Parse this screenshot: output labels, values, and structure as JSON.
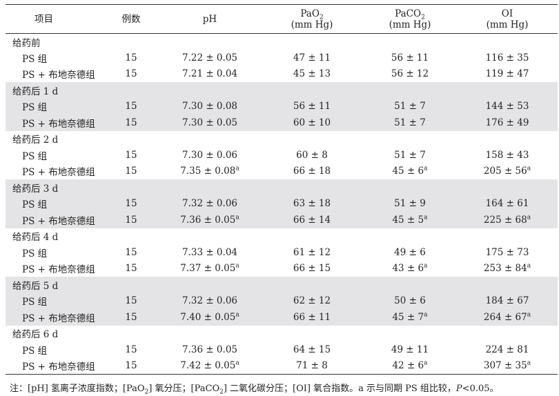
{
  "header": {
    "col_item": "项目",
    "col_n": "例数",
    "col_ph": "pH",
    "col_pao2_main": "PaO",
    "col_pao2_sub": "2",
    "col_pao2_unit": "(mm Hg)",
    "col_paco2_main": "PaCO",
    "col_paco2_sub": "2",
    "col_paco2_unit": "(mm Hg)",
    "col_oi_main": "OI",
    "col_oi_unit": "(mm Hg)"
  },
  "sections": [
    {
      "title": "给药前",
      "rows": [
        {
          "group": "PS 组",
          "n": "15",
          "ph": "7.22 ± 0.05",
          "ph_sup": "",
          "pao2": "47 ± 11",
          "pao2_sup": "",
          "paco2": "56 ± 11",
          "paco2_sup": "",
          "oi": "116 ± 35",
          "oi_sup": ""
        },
        {
          "group": "PS + 布地奈德组",
          "n": "15",
          "ph": "7.21 ± 0.04",
          "ph_sup": "",
          "pao2": "45 ± 13",
          "pao2_sup": "",
          "paco2": "56 ± 12",
          "paco2_sup": "",
          "oi": "119 ± 47",
          "oi_sup": ""
        }
      ]
    },
    {
      "title": "给药后 1 d",
      "rows": [
        {
          "group": "PS 组",
          "n": "15",
          "ph": "7.30 ± 0.08",
          "ph_sup": "",
          "pao2": "56 ± 11",
          "pao2_sup": "",
          "paco2": "51 ± 7",
          "paco2_sup": "",
          "oi": "144 ± 53",
          "oi_sup": ""
        },
        {
          "group": "PS + 布地奈德组",
          "n": "15",
          "ph": "7.30 ± 0.05",
          "ph_sup": "",
          "pao2": "60 ± 10",
          "pao2_sup": "",
          "paco2": "51 ± 7",
          "paco2_sup": "",
          "oi": "176 ± 49",
          "oi_sup": ""
        }
      ]
    },
    {
      "title": "给药后 2 d",
      "rows": [
        {
          "group": "PS 组",
          "n": "15",
          "ph": "7.30 ± 0.06",
          "ph_sup": "",
          "pao2": "60 ± 8",
          "pao2_sup": "",
          "paco2": "51 ± 7",
          "paco2_sup": "",
          "oi": "158 ± 43",
          "oi_sup": ""
        },
        {
          "group": "PS + 布地奈德组",
          "n": "15",
          "ph": "7.35 ± 0.08",
          "ph_sup": "a",
          "pao2": "66 ± 18",
          "pao2_sup": "",
          "paco2": "45 ± 6",
          "paco2_sup": "a",
          "oi": "205 ± 56",
          "oi_sup": "a"
        }
      ]
    },
    {
      "title": "给药后 3 d",
      "rows": [
        {
          "group": "PS 组",
          "n": "15",
          "ph": "7.32 ± 0.06",
          "ph_sup": "",
          "pao2": "63 ± 18",
          "pao2_sup": "",
          "paco2": "51 ± 9",
          "paco2_sup": "",
          "oi": "164 ± 61",
          "oi_sup": ""
        },
        {
          "group": "PS + 布地奈德组",
          "n": "15",
          "ph": "7.36 ± 0.05",
          "ph_sup": "a",
          "pao2": "66 ± 14",
          "pao2_sup": "",
          "paco2": "45 ± 5",
          "paco2_sup": "a",
          "oi": "225 ± 68",
          "oi_sup": "a"
        }
      ]
    },
    {
      "title": "给药后 4 d",
      "rows": [
        {
          "group": "PS 组",
          "n": "15",
          "ph": "7.33 ± 0.04",
          "ph_sup": "",
          "pao2": "61 ± 12",
          "pao2_sup": "",
          "paco2": "49 ± 6",
          "paco2_sup": "",
          "oi": "175 ± 73",
          "oi_sup": ""
        },
        {
          "group": "PS + 布地奈德组",
          "n": "15",
          "ph": "7.37 ± 0.05",
          "ph_sup": "a",
          "pao2": "66 ± 15",
          "pao2_sup": "",
          "paco2": "43 ± 6",
          "paco2_sup": "a",
          "oi": "253 ± 84",
          "oi_sup": "a"
        }
      ]
    },
    {
      "title": "给药后 5 d",
      "rows": [
        {
          "group": "PS 组",
          "n": "15",
          "ph": "7.32 ± 0.06",
          "ph_sup": "",
          "pao2": "62 ± 12",
          "pao2_sup": "",
          "paco2": "50 ± 6",
          "paco2_sup": "",
          "oi": "184 ± 67",
          "oi_sup": ""
        },
        {
          "group": "PS + 布地奈德组",
          "n": "15",
          "ph": "7.40 ± 0.05",
          "ph_sup": "a",
          "pao2": "66 ± 11",
          "pao2_sup": "",
          "paco2": "45 ± 7",
          "paco2_sup": "a",
          "oi": "264 ± 67",
          "oi_sup": "a"
        }
      ]
    },
    {
      "title": "给药后 6 d",
      "rows": [
        {
          "group": "PS 组",
          "n": "15",
          "ph": "7.36 ± 0.05",
          "ph_sup": "",
          "pao2": "64 ± 15",
          "pao2_sup": "",
          "paco2": "49 ± 11",
          "paco2_sup": "",
          "oi": "224 ± 81",
          "oi_sup": ""
        },
        {
          "group": "PS + 布地奈德组",
          "n": "15",
          "ph": "7.42 ± 0.05",
          "ph_sup": "a",
          "pao2": "71 ± 8",
          "pao2_sup": "",
          "paco2": "42 ± 6",
          "paco2_sup": "a",
          "oi": "307 ± 35",
          "oi_sup": "a"
        }
      ]
    }
  ],
  "note": {
    "prefix": "注：[pH] 氢离子浓度指数；[PaO",
    "sub1": "2",
    "mid1": "] 氧分压；[PaCO",
    "sub2": "2",
    "mid2": "] 二氧化碳分压；[OI] 氧合指数。a 示与同期 PS 组比较，",
    "p_italic": "P",
    "suffix": "<0.05。"
  },
  "colors": {
    "shade": "#e4e4e6",
    "rule": "#333333"
  }
}
